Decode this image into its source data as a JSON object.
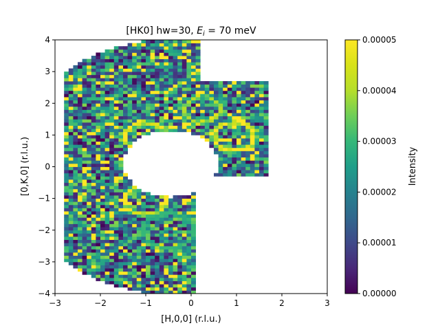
{
  "chart_data": {
    "type": "heatmap",
    "title_prefix": "[HK0] hw=30, ",
    "title_math": "E",
    "title_math_sub": "i",
    "title_suffix": " = 70 meV",
    "xlabel": "[H,0,0] (r.l.u.)",
    "ylabel": "[0,K,0] (r.l.u.)",
    "colorbar_label": "Intensity",
    "colormap": "viridis",
    "xlim": [
      -3,
      3
    ],
    "ylim": [
      -4,
      4
    ],
    "clim": [
      0,
      5e-05
    ],
    "x_ticks": [
      "−3",
      "−2",
      "−1",
      "0",
      "1",
      "2",
      "3"
    ],
    "y_ticks": [
      "−4",
      "−3",
      "−2",
      "−1",
      "0",
      "1",
      "2",
      "3",
      "4"
    ],
    "colorbar_ticks": [
      "0.00000",
      "0.00001",
      "0.00002",
      "0.00003",
      "0.00004",
      "0.00005"
    ],
    "grid_spacing": 0.1,
    "coverage": {
      "outer_radius": 4.1,
      "inner_radius": 1.05,
      "inner_center": [
        -0.45,
        0.1
      ],
      "cut_angle_deg": [
        -45,
        15
      ],
      "x_cut": [
        0.1,
        1.7
      ],
      "y_cut": [
        -0.25,
        2.7
      ]
    },
    "rings": [
      {
        "center": [
          -1.0,
          0.95
        ],
        "radius": 0.45,
        "peak": 5e-05
      },
      {
        "center": [
          -1.0,
          -1.05
        ],
        "radius": 0.45,
        "peak": 5e-05
      },
      {
        "center": [
          0.95,
          0.95
        ],
        "radius": 0.45,
        "peak": 5e-05
      },
      {
        "center": [
          0.25,
          1.8
        ],
        "radius": 0.4,
        "peak": 4e-05
      },
      {
        "center": [
          -0.5,
          -2.0
        ],
        "radius": 0.55,
        "peak": 3e-05
      }
    ],
    "background_level": 2.2e-05,
    "noise_amplitude": 3e-05
  }
}
